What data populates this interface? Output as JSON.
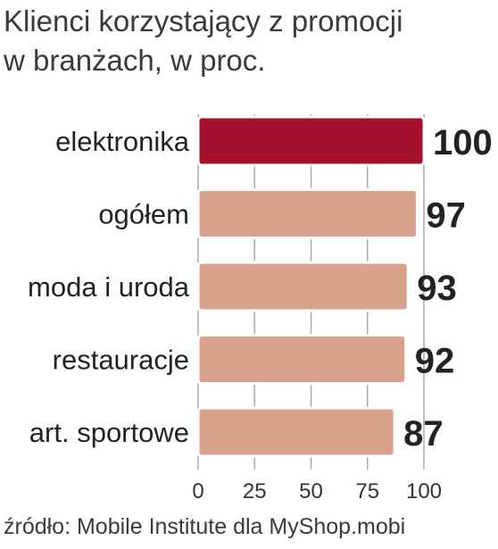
{
  "title": "Klienci korzystający z promocji\nw branżach, w proc.",
  "source": "źródło: Mobile Institute dla MyShop.mobi",
  "colors": {
    "highlight": "#a6122e",
    "bar": "#d9a28c",
    "grid": "#aaaaaa",
    "text": "#222222"
  },
  "chart_data": {
    "type": "bar",
    "orientation": "horizontal",
    "categories": [
      "elektronika",
      "ogółem",
      "moda i uroda",
      "restauracje",
      "art. sportowe"
    ],
    "values": [
      100,
      97,
      93,
      92,
      87
    ],
    "highlighted": [
      "elektronika"
    ],
    "xlim": [
      0,
      100
    ],
    "xticks": [
      0,
      25,
      50,
      75,
      100
    ],
    "grid": true
  }
}
